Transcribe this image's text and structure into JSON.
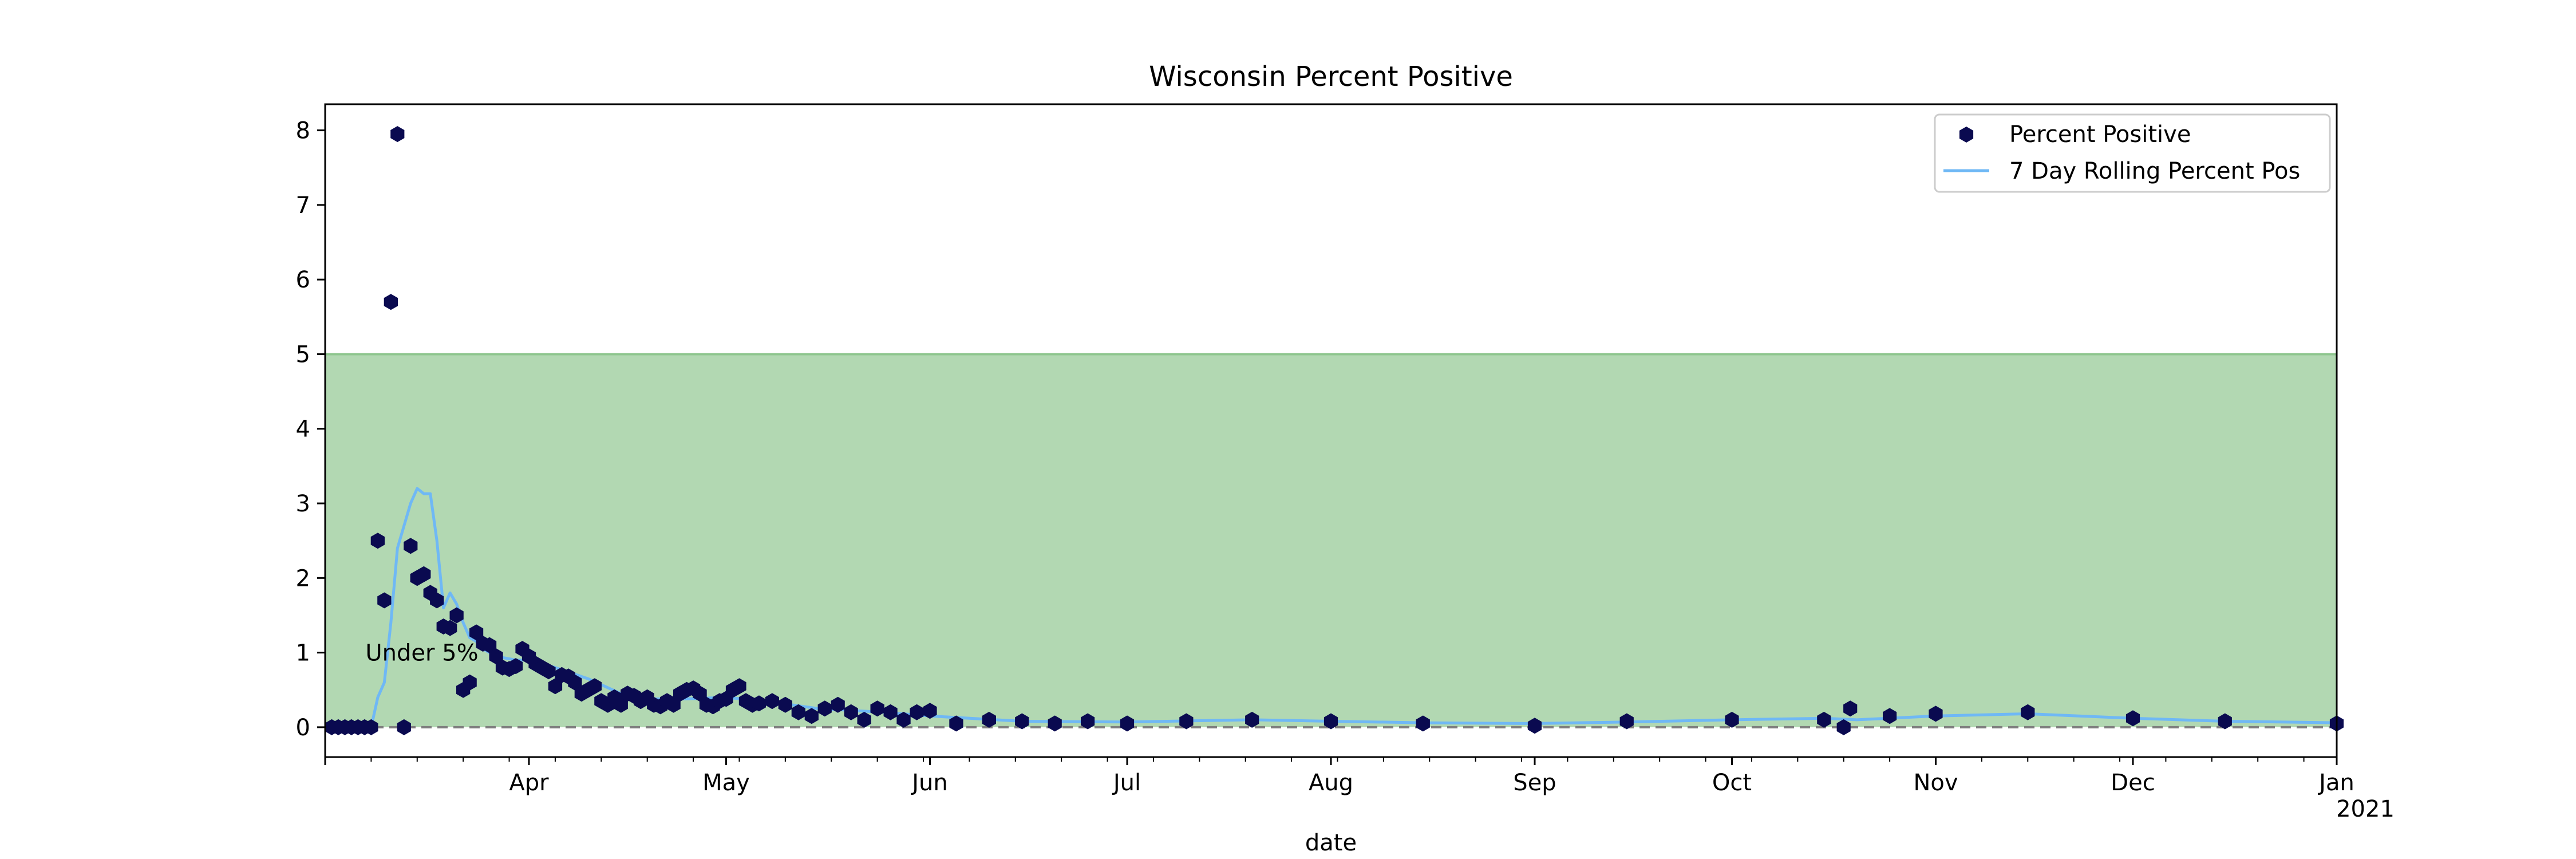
{
  "chart_data": {
    "type": "scatter",
    "title": "Wisconsin Percent Positive",
    "xlabel": "date",
    "ylabel": "",
    "xlim": [
      "2020-03-01",
      "2021-01-01"
    ],
    "ylim": [
      -0.4,
      8.35
    ],
    "x_major_ticks": [
      {
        "date": "2020-04-01",
        "label": "Apr"
      },
      {
        "date": "2020-05-01",
        "label": "May"
      },
      {
        "date": "2020-06-01",
        "label": "Jun"
      },
      {
        "date": "2020-07-01",
        "label": "Jul"
      },
      {
        "date": "2020-08-01",
        "label": "Aug"
      },
      {
        "date": "2020-09-01",
        "label": "Sep"
      },
      {
        "date": "2020-10-01",
        "label": "Oct"
      },
      {
        "date": "2020-11-01",
        "label": "Nov"
      },
      {
        "date": "2020-12-01",
        "label": "Dec"
      },
      {
        "date": "2021-01-01",
        "label": "Jan",
        "sublabel": "2021"
      }
    ],
    "y_ticks": [
      0,
      1,
      2,
      3,
      4,
      5,
      6,
      7,
      8
    ],
    "threshold": {
      "y": 5,
      "fill_from": 0,
      "fill_color": "#b2d8b2",
      "line_color": "#8ec68e",
      "label": "Under 5%",
      "label_date": "2020-03-08",
      "label_y": 1.0
    },
    "zero_line": {
      "y": 0,
      "style": "dashed",
      "color": "#7f7f7f"
    },
    "legend": {
      "placement": "top-right"
    },
    "series": [
      {
        "name": "Percent Positive",
        "kind": "markers",
        "color": "#0a0a50",
        "points": [
          [
            "2020-03-02",
            0.0
          ],
          [
            "2020-03-03",
            0.0
          ],
          [
            "2020-03-04",
            0.0
          ],
          [
            "2020-03-05",
            0.0
          ],
          [
            "2020-03-06",
            0.0
          ],
          [
            "2020-03-07",
            0.0
          ],
          [
            "2020-03-08",
            0.0
          ],
          [
            "2020-03-09",
            2.5
          ],
          [
            "2020-03-10",
            1.7
          ],
          [
            "2020-03-11",
            5.7
          ],
          [
            "2020-03-12",
            7.95
          ],
          [
            "2020-03-13",
            0.0
          ],
          [
            "2020-03-14",
            2.43
          ],
          [
            "2020-03-15",
            2.0
          ],
          [
            "2020-03-16",
            2.05
          ],
          [
            "2020-03-17",
            1.8
          ],
          [
            "2020-03-18",
            1.7
          ],
          [
            "2020-03-19",
            1.35
          ],
          [
            "2020-03-20",
            1.33
          ],
          [
            "2020-03-21",
            1.5
          ],
          [
            "2020-03-22",
            0.5
          ],
          [
            "2020-03-23",
            0.6
          ],
          [
            "2020-03-24",
            1.27
          ],
          [
            "2020-03-25",
            1.12
          ],
          [
            "2020-03-26",
            1.1
          ],
          [
            "2020-03-27",
            0.95
          ],
          [
            "2020-03-28",
            0.8
          ],
          [
            "2020-03-29",
            0.78
          ],
          [
            "2020-03-30",
            0.82
          ],
          [
            "2020-03-31",
            1.05
          ],
          [
            "2020-04-01",
            0.95
          ],
          [
            "2020-04-02",
            0.85
          ],
          [
            "2020-04-03",
            0.8
          ],
          [
            "2020-04-04",
            0.75
          ],
          [
            "2020-04-05",
            0.55
          ],
          [
            "2020-04-06",
            0.7
          ],
          [
            "2020-04-07",
            0.68
          ],
          [
            "2020-04-08",
            0.6
          ],
          [
            "2020-04-09",
            0.45
          ],
          [
            "2020-04-10",
            0.5
          ],
          [
            "2020-04-11",
            0.55
          ],
          [
            "2020-04-12",
            0.35
          ],
          [
            "2020-04-13",
            0.3
          ],
          [
            "2020-04-14",
            0.4
          ],
          [
            "2020-04-15",
            0.3
          ],
          [
            "2020-04-16",
            0.45
          ],
          [
            "2020-04-17",
            0.42
          ],
          [
            "2020-04-18",
            0.35
          ],
          [
            "2020-04-19",
            0.4
          ],
          [
            "2020-04-20",
            0.3
          ],
          [
            "2020-04-21",
            0.28
          ],
          [
            "2020-04-22",
            0.35
          ],
          [
            "2020-04-23",
            0.3
          ],
          [
            "2020-04-24",
            0.45
          ],
          [
            "2020-04-25",
            0.5
          ],
          [
            "2020-04-26",
            0.52
          ],
          [
            "2020-04-27",
            0.45
          ],
          [
            "2020-04-28",
            0.3
          ],
          [
            "2020-04-29",
            0.28
          ],
          [
            "2020-04-30",
            0.35
          ],
          [
            "2020-05-01",
            0.38
          ],
          [
            "2020-05-02",
            0.5
          ],
          [
            "2020-05-03",
            0.55
          ],
          [
            "2020-05-04",
            0.35
          ],
          [
            "2020-05-05",
            0.3
          ],
          [
            "2020-05-06",
            0.32
          ],
          [
            "2020-05-08",
            0.35
          ],
          [
            "2020-05-10",
            0.3
          ],
          [
            "2020-05-12",
            0.2
          ],
          [
            "2020-05-14",
            0.15
          ],
          [
            "2020-05-16",
            0.25
          ],
          [
            "2020-05-18",
            0.3
          ],
          [
            "2020-05-20",
            0.2
          ],
          [
            "2020-05-22",
            0.1
          ],
          [
            "2020-05-24",
            0.25
          ],
          [
            "2020-05-26",
            0.2
          ],
          [
            "2020-05-28",
            0.1
          ],
          [
            "2020-05-30",
            0.2
          ],
          [
            "2020-06-01",
            0.22
          ],
          [
            "2020-06-05",
            0.05
          ],
          [
            "2020-06-10",
            0.1
          ],
          [
            "2020-06-15",
            0.08
          ],
          [
            "2020-06-20",
            0.05
          ],
          [
            "2020-06-25",
            0.08
          ],
          [
            "2020-07-01",
            0.05
          ],
          [
            "2020-07-10",
            0.08
          ],
          [
            "2020-07-20",
            0.1
          ],
          [
            "2020-08-01",
            0.08
          ],
          [
            "2020-08-15",
            0.05
          ],
          [
            "2020-09-01",
            0.02
          ],
          [
            "2020-09-15",
            0.08
          ],
          [
            "2020-10-01",
            0.1
          ],
          [
            "2020-10-15",
            0.1
          ],
          [
            "2020-10-18",
            0.0
          ],
          [
            "2020-10-19",
            0.25
          ],
          [
            "2020-10-25",
            0.15
          ],
          [
            "2020-11-01",
            0.18
          ],
          [
            "2020-11-15",
            0.2
          ],
          [
            "2020-12-01",
            0.12
          ],
          [
            "2020-12-15",
            0.08
          ],
          [
            "2021-01-01",
            0.05
          ]
        ]
      },
      {
        "name": "7 Day Rolling Percent Pos",
        "kind": "line",
        "color": "#6fb8f5",
        "points": [
          [
            "2020-03-02",
            0.0
          ],
          [
            "2020-03-08",
            0.0
          ],
          [
            "2020-03-09",
            0.4
          ],
          [
            "2020-03-10",
            0.6
          ],
          [
            "2020-03-11",
            1.4
          ],
          [
            "2020-03-12",
            2.4
          ],
          [
            "2020-03-13",
            2.7
          ],
          [
            "2020-03-14",
            3.0
          ],
          [
            "2020-03-15",
            3.2
          ],
          [
            "2020-03-16",
            3.13
          ],
          [
            "2020-03-17",
            3.13
          ],
          [
            "2020-03-18",
            2.5
          ],
          [
            "2020-03-19",
            1.6
          ],
          [
            "2020-03-20",
            1.8
          ],
          [
            "2020-03-21",
            1.65
          ],
          [
            "2020-03-22",
            1.4
          ],
          [
            "2020-03-23",
            1.2
          ],
          [
            "2020-03-24",
            1.15
          ],
          [
            "2020-03-25",
            1.05
          ],
          [
            "2020-03-27",
            0.95
          ],
          [
            "2020-03-30",
            0.9
          ],
          [
            "2020-04-01",
            0.9
          ],
          [
            "2020-04-05",
            0.8
          ],
          [
            "2020-04-10",
            0.65
          ],
          [
            "2020-04-15",
            0.45
          ],
          [
            "2020-04-20",
            0.38
          ],
          [
            "2020-04-25",
            0.38
          ],
          [
            "2020-05-01",
            0.4
          ],
          [
            "2020-05-07",
            0.35
          ],
          [
            "2020-05-15",
            0.25
          ],
          [
            "2020-05-25",
            0.2
          ],
          [
            "2020-06-01",
            0.15
          ],
          [
            "2020-06-15",
            0.08
          ],
          [
            "2020-07-01",
            0.07
          ],
          [
            "2020-07-20",
            0.1
          ],
          [
            "2020-08-01",
            0.08
          ],
          [
            "2020-08-15",
            0.06
          ],
          [
            "2020-09-01",
            0.05
          ],
          [
            "2020-09-15",
            0.07
          ],
          [
            "2020-10-01",
            0.1
          ],
          [
            "2020-10-15",
            0.12
          ],
          [
            "2020-10-20",
            0.1
          ],
          [
            "2020-11-01",
            0.15
          ],
          [
            "2020-11-15",
            0.18
          ],
          [
            "2020-12-01",
            0.12
          ],
          [
            "2020-12-15",
            0.08
          ],
          [
            "2021-01-01",
            0.06
          ]
        ]
      }
    ]
  }
}
